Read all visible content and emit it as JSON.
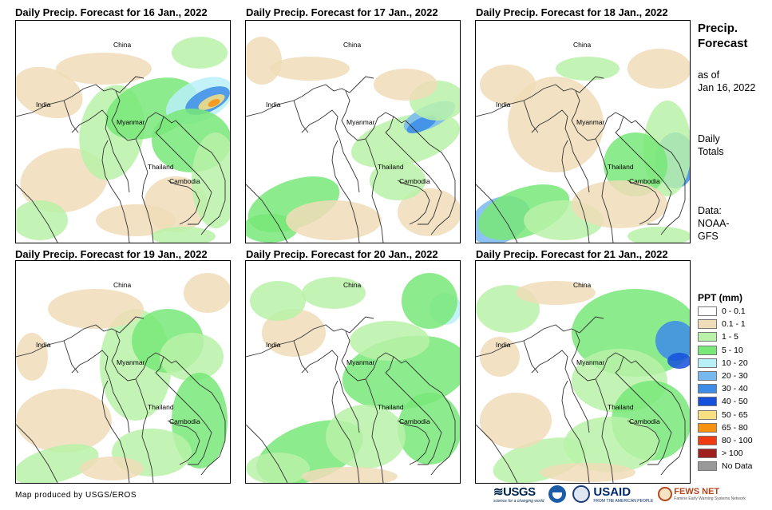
{
  "panels": [
    {
      "title": "Daily Precip. Forecast for 16 Jan., 2022",
      "pattern": "p16"
    },
    {
      "title": "Daily Precip. Forecast for 17 Jan., 2022",
      "pattern": "p17"
    },
    {
      "title": "Daily Precip. Forecast for 18 Jan., 2022",
      "pattern": "p18"
    },
    {
      "title": "Daily Precip. Forecast for 19 Jan., 2022",
      "pattern": "p19"
    },
    {
      "title": "Daily Precip. Forecast for 20 Jan., 2022",
      "pattern": "p20"
    },
    {
      "title": "Daily Precip. Forecast for 21 Jan., 2022",
      "pattern": "p21"
    }
  ],
  "map_labels": {
    "china": "China",
    "india": "India",
    "myanmar": "Myanmar",
    "thailand": "Thailand",
    "cambodia": "Cambodia"
  },
  "side": {
    "title_line1": "Precip.",
    "title_line2": "Forecast",
    "asof_line1": "as of",
    "asof_line2": "Jan 16, 2022",
    "daily_line1": "Daily",
    "daily_line2": "Totals",
    "data_line1": "Data:",
    "data_line2": "NOAA-",
    "data_line3": "GFS"
  },
  "legend": {
    "title": "PPT (mm)",
    "items": [
      {
        "label": "0 - 0.1",
        "color": "#ffffff"
      },
      {
        "label": "0.1 - 1",
        "color": "#f0dcb8"
      },
      {
        "label": "1 - 5",
        "color": "#b8f2a8"
      },
      {
        "label": "5 - 10",
        "color": "#78e878"
      },
      {
        "label": "10 - 20",
        "color": "#b8f0f8"
      },
      {
        "label": "20 - 30",
        "color": "#78b8f0"
      },
      {
        "label": "30 - 40",
        "color": "#3c8ce8"
      },
      {
        "label": "40 - 50",
        "color": "#1450dc"
      },
      {
        "label": "50 - 65",
        "color": "#f8e080"
      },
      {
        "label": "65 - 80",
        "color": "#f89010"
      },
      {
        "label": "80 - 100",
        "color": "#f03c10"
      },
      {
        "label": "> 100",
        "color": "#a01e1e"
      },
      {
        "label": "No Data",
        "color": "#999999"
      }
    ]
  },
  "credit": "Map produced by USGS/EROS",
  "logos": {
    "usgs": "≋USGS",
    "usgs_tag": "science for a changing world",
    "usaid": "USAID",
    "usaid_tag": "FROM THE AMERICAN PEOPLE",
    "fews": "FEWS NET",
    "fews_tag": "Famine Early Warning Systems Network"
  }
}
